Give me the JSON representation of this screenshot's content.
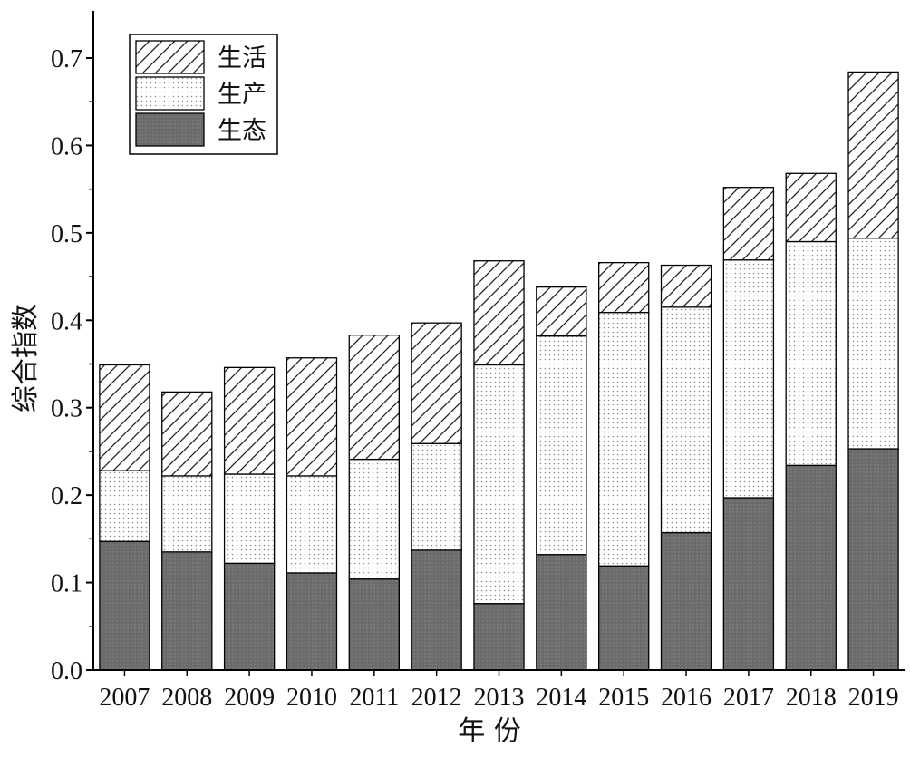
{
  "chart_data": {
    "type": "bar",
    "stacked": true,
    "title": "",
    "xlabel": "年 份",
    "ylabel": "综合指数",
    "ylim": [
      0,
      0.75
    ],
    "yticks": [
      "0.0",
      "0.1",
      "0.2",
      "0.3",
      "0.4",
      "0.5",
      "0.6",
      "0.7"
    ],
    "categories": [
      "2007",
      "2008",
      "2009",
      "2010",
      "2011",
      "2012",
      "2013",
      "2014",
      "2015",
      "2016",
      "2017",
      "2018",
      "2019"
    ],
    "series": [
      {
        "name": "生态",
        "pattern": "solid-dark",
        "color": "#6e6e6e",
        "values": [
          0.147,
          0.135,
          0.122,
          0.111,
          0.104,
          0.137,
          0.076,
          0.132,
          0.119,
          0.157,
          0.197,
          0.234,
          0.253
        ]
      },
      {
        "name": "生产",
        "pattern": "dotted",
        "color": "#ffffff",
        "values": [
          0.081,
          0.087,
          0.102,
          0.111,
          0.137,
          0.122,
          0.273,
          0.25,
          0.29,
          0.258,
          0.272,
          0.256,
          0.241
        ]
      },
      {
        "name": "生活",
        "pattern": "diagonal-hatch",
        "color": "#ffffff",
        "values": [
          0.121,
          0.096,
          0.122,
          0.135,
          0.142,
          0.138,
          0.119,
          0.056,
          0.057,
          0.048,
          0.083,
          0.078,
          0.19
        ]
      }
    ],
    "legend_position": "top-left",
    "legend_order": [
      "生活",
      "生产",
      "生态"
    ],
    "grid": false
  }
}
